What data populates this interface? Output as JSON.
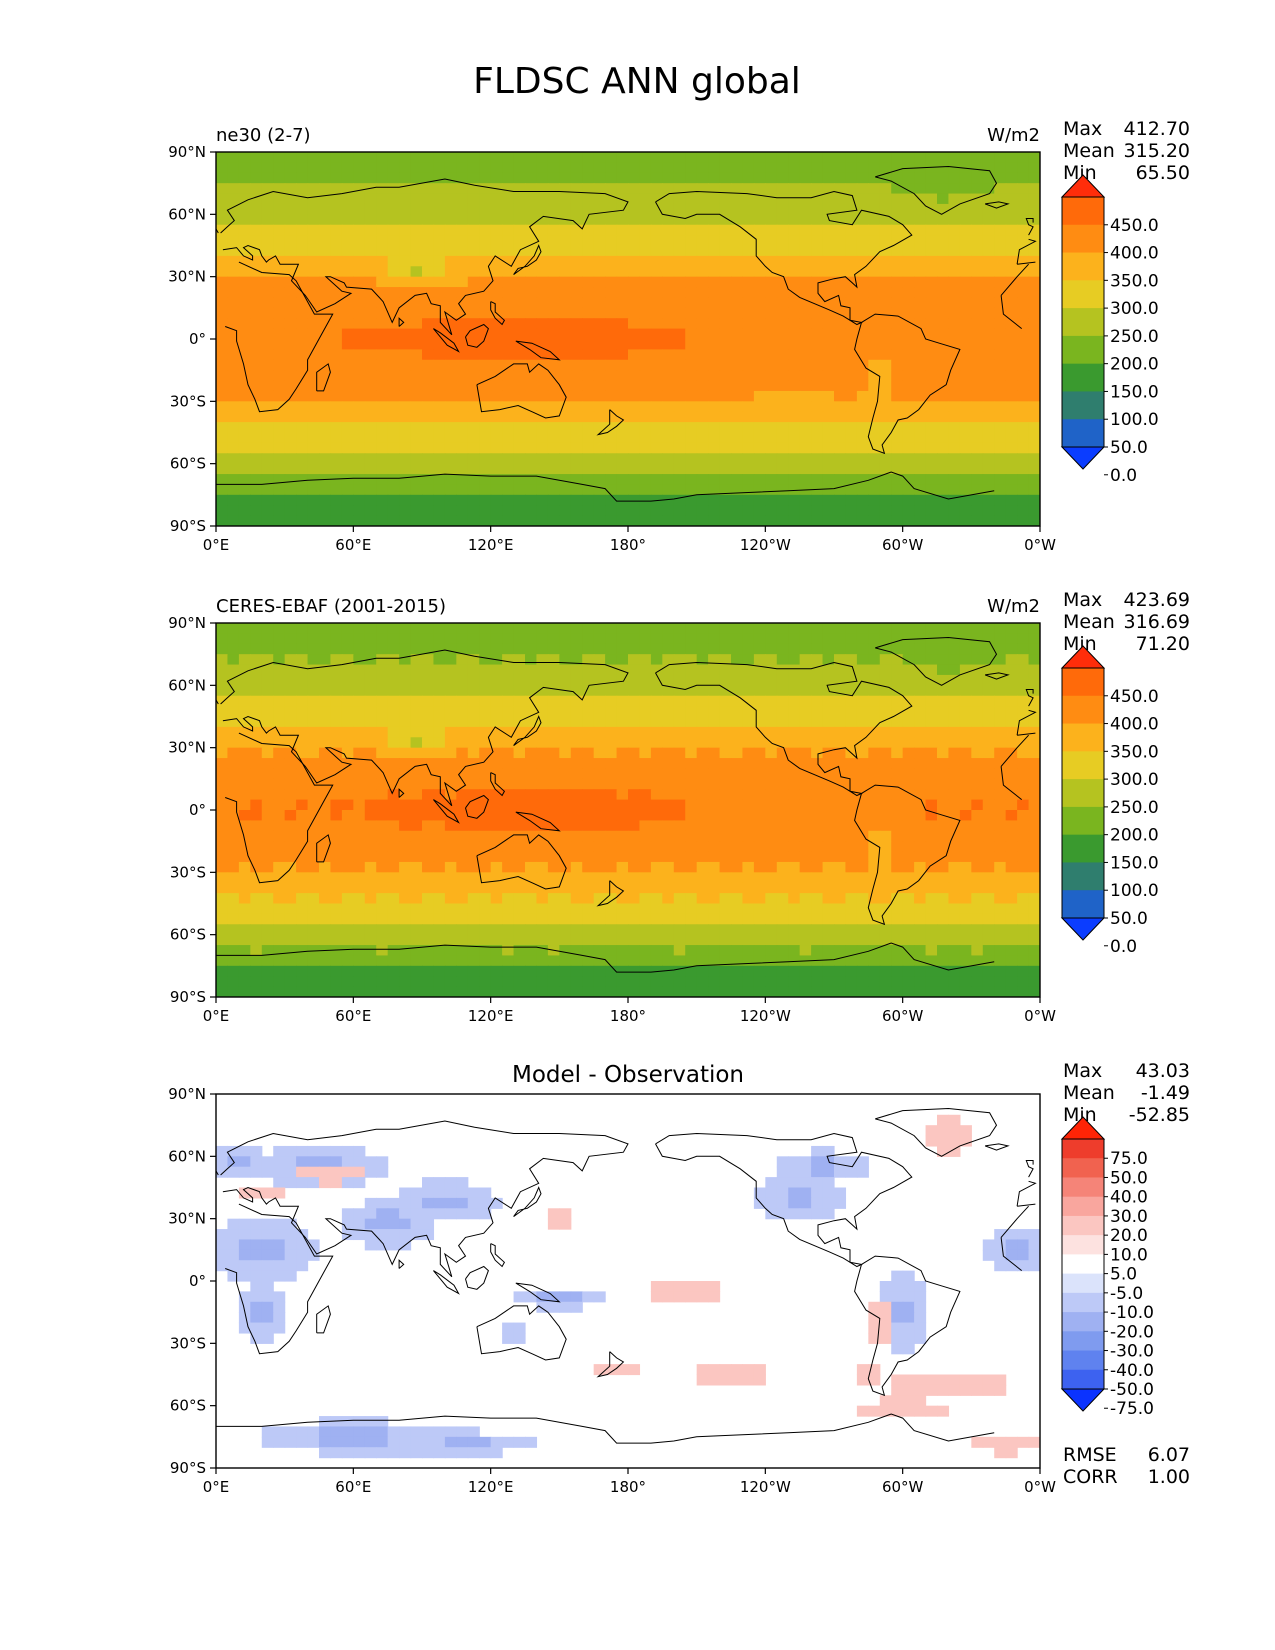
{
  "title": "FLDSC ANN global",
  "lon_ticks": [
    "0°E",
    "60°E",
    "120°E",
    "180°",
    "120°W",
    "60°W",
    "0°W"
  ],
  "lat_ticks": [
    "90°N",
    "60°N",
    "30°N",
    "0°",
    "30°S",
    "60°S",
    "90°S"
  ],
  "stat_labels": {
    "max": "Max",
    "mean": "Mean",
    "min": "Min",
    "rmse": "RMSE",
    "corr": "CORR"
  },
  "colors": {
    "abs_levels": [
      "#0b3dff",
      "#1f63c8",
      "#2f7e6e",
      "#3a9a2f",
      "#7ab51f",
      "#b5c320",
      "#e7cc23",
      "#fcb21c",
      "#ff8c12",
      "#ff6a0a",
      "#ff2d0a"
    ],
    "diff_levels": [
      "#0b33ff",
      "#3d62f0",
      "#5f82ef",
      "#7f9bef",
      "#9fb1f2",
      "#bdc9f7",
      "#dbe3fb",
      "#ffffff",
      "#fde2e0",
      "#fbc6c1",
      "#f9a69e",
      "#f58478",
      "#f1624f",
      "#ee3d2c",
      "#ff2406"
    ],
    "land_outline": "#000000"
  },
  "panels": [
    {
      "title_left": "ne30 (2-7)",
      "title_center": "",
      "units": "W/m2",
      "stats": {
        "max": "412.70",
        "mean": "315.20",
        "min": "65.50"
      },
      "colorbar_labels": [
        "450.0",
        "400.0",
        "350.0",
        "300.0",
        "250.0",
        "200.0",
        "150.0",
        "100.0",
        "50.0",
        "0.0"
      ]
    },
    {
      "title_left": "CERES-EBAF (2001-2015)",
      "title_center": "",
      "units": "W/m2",
      "stats": {
        "max": "423.69",
        "mean": "316.69",
        "min": "71.20"
      },
      "colorbar_labels": [
        "450.0",
        "400.0",
        "350.0",
        "300.0",
        "250.0",
        "200.0",
        "150.0",
        "100.0",
        "50.0",
        "0.0"
      ]
    },
    {
      "title_left": "",
      "title_center": "Model - Observation",
      "units": "",
      "stats": {
        "max": "43.03",
        "mean": "-1.49",
        "min": "-52.85",
        "rmse": "6.07",
        "corr": "1.00"
      },
      "colorbar_labels": [
        "75.0",
        "50.0",
        "40.0",
        "30.0",
        "20.0",
        "10.0",
        "5.0",
        "-5.0",
        "-10.0",
        "-20.0",
        "-30.0",
        "-40.0",
        "-50.0",
        "-75.0"
      ]
    }
  ],
  "chart_data": [
    {
      "type": "heatmap",
      "title": "ne30 (2-7)",
      "units": "W/m2",
      "x": "longitude 0°E–360°",
      "y": "latitude 90°S–90°N",
      "levels": [
        0,
        50,
        100,
        150,
        200,
        250,
        300,
        350,
        400,
        450
      ],
      "zonal_mean_profile": [
        {
          "lat": 90,
          "value": 170
        },
        {
          "lat": 75,
          "value": 195
        },
        {
          "lat": 60,
          "value": 230
        },
        {
          "lat": 45,
          "value": 285
        },
        {
          "lat": 30,
          "value": 345
        },
        {
          "lat": 15,
          "value": 385
        },
        {
          "lat": 0,
          "value": 400
        },
        {
          "lat": -15,
          "value": 385
        },
        {
          "lat": -30,
          "value": 345
        },
        {
          "lat": -45,
          "value": 290
        },
        {
          "lat": -55,
          "value": 255
        },
        {
          "lat": -65,
          "value": 215
        },
        {
          "lat": -75,
          "value": 140
        },
        {
          "lat": -90,
          "value": 110
        }
      ],
      "stats": {
        "max": 412.7,
        "mean": 315.2,
        "min": 65.5
      }
    },
    {
      "type": "heatmap",
      "title": "CERES-EBAF (2001-2015)",
      "units": "W/m2",
      "x": "longitude 0°E–360°",
      "y": "latitude 90°S–90°N",
      "levels": [
        0,
        50,
        100,
        150,
        200,
        250,
        300,
        350,
        400,
        450
      ],
      "zonal_mean_profile": [
        {
          "lat": 90,
          "value": 170
        },
        {
          "lat": 75,
          "value": 195
        },
        {
          "lat": 60,
          "value": 230
        },
        {
          "lat": 45,
          "value": 285
        },
        {
          "lat": 30,
          "value": 345
        },
        {
          "lat": 15,
          "value": 385
        },
        {
          "lat": 0,
          "value": 400
        },
        {
          "lat": -15,
          "value": 385
        },
        {
          "lat": -30,
          "value": 345
        },
        {
          "lat": -45,
          "value": 290
        },
        {
          "lat": -55,
          "value": 255
        },
        {
          "lat": -65,
          "value": 215
        },
        {
          "lat": -75,
          "value": 140
        },
        {
          "lat": -90,
          "value": 110
        }
      ],
      "stats": {
        "max": 423.69,
        "mean": 316.69,
        "min": 71.2
      }
    },
    {
      "type": "heatmap",
      "title": "Model - Observation",
      "x": "longitude 0°E–360°",
      "y": "latitude 90°S–90°N",
      "levels": [
        -75,
        -50,
        -40,
        -30,
        -20,
        -10,
        -5,
        5,
        10,
        20,
        30,
        40,
        50,
        75
      ],
      "stats": {
        "max": 43.03,
        "mean": -1.49,
        "min": -52.85,
        "rmse": 6.07,
        "corr": 1.0
      }
    }
  ]
}
